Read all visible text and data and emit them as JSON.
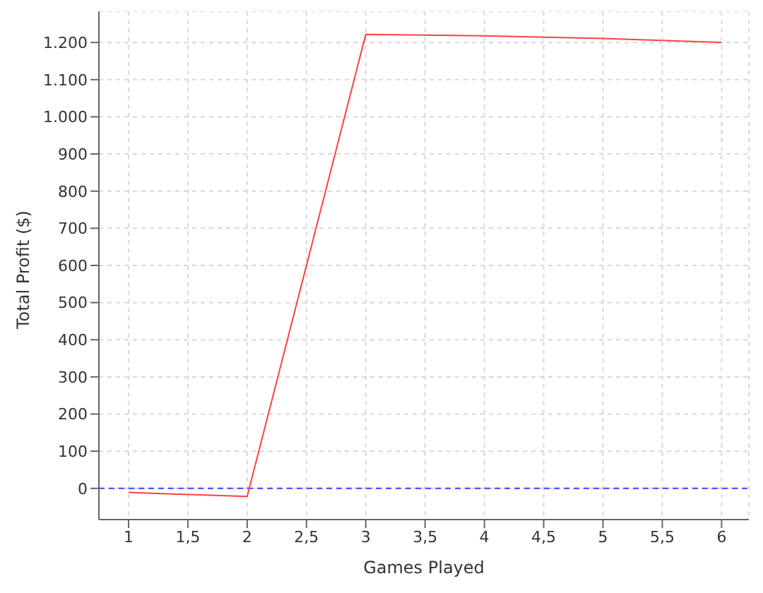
{
  "chart_data": {
    "type": "line",
    "xlabel": "Games Played",
    "ylabel": "Total Profit ($)",
    "x": [
      1,
      2,
      3,
      4,
      5,
      6
    ],
    "series": [
      {
        "color": "#ff4040",
        "values": [
          -11,
          -22,
          1222,
          1218,
          1211,
          1200
        ]
      }
    ],
    "xlim": [
      0.75,
      6.23
    ],
    "ylim": [
      -84,
      1284
    ],
    "xticks": [
      1,
      {
        "value": 1.5,
        "label": "1,5"
      },
      2,
      {
        "value": 2.5,
        "label": "2,5"
      },
      3,
      {
        "value": 3.5,
        "label": "3,5"
      },
      4,
      {
        "value": 4.5,
        "label": "4,5"
      },
      5,
      {
        "value": 5.5,
        "label": "5,5"
      },
      6
    ],
    "yticks": [
      0,
      100,
      200,
      300,
      400,
      500,
      600,
      700,
      800,
      900,
      {
        "value": 1000,
        "label": "1.000"
      },
      {
        "value": 1100,
        "label": "1.100"
      },
      {
        "value": 1200,
        "label": "1.200"
      }
    ],
    "ref_lines": [
      {
        "axis": "y",
        "value": 0,
        "color": "#4040ff",
        "line_style": "dashed"
      }
    ],
    "grid": true,
    "marker": "none",
    "line_style": "solid",
    "legend": false
  }
}
